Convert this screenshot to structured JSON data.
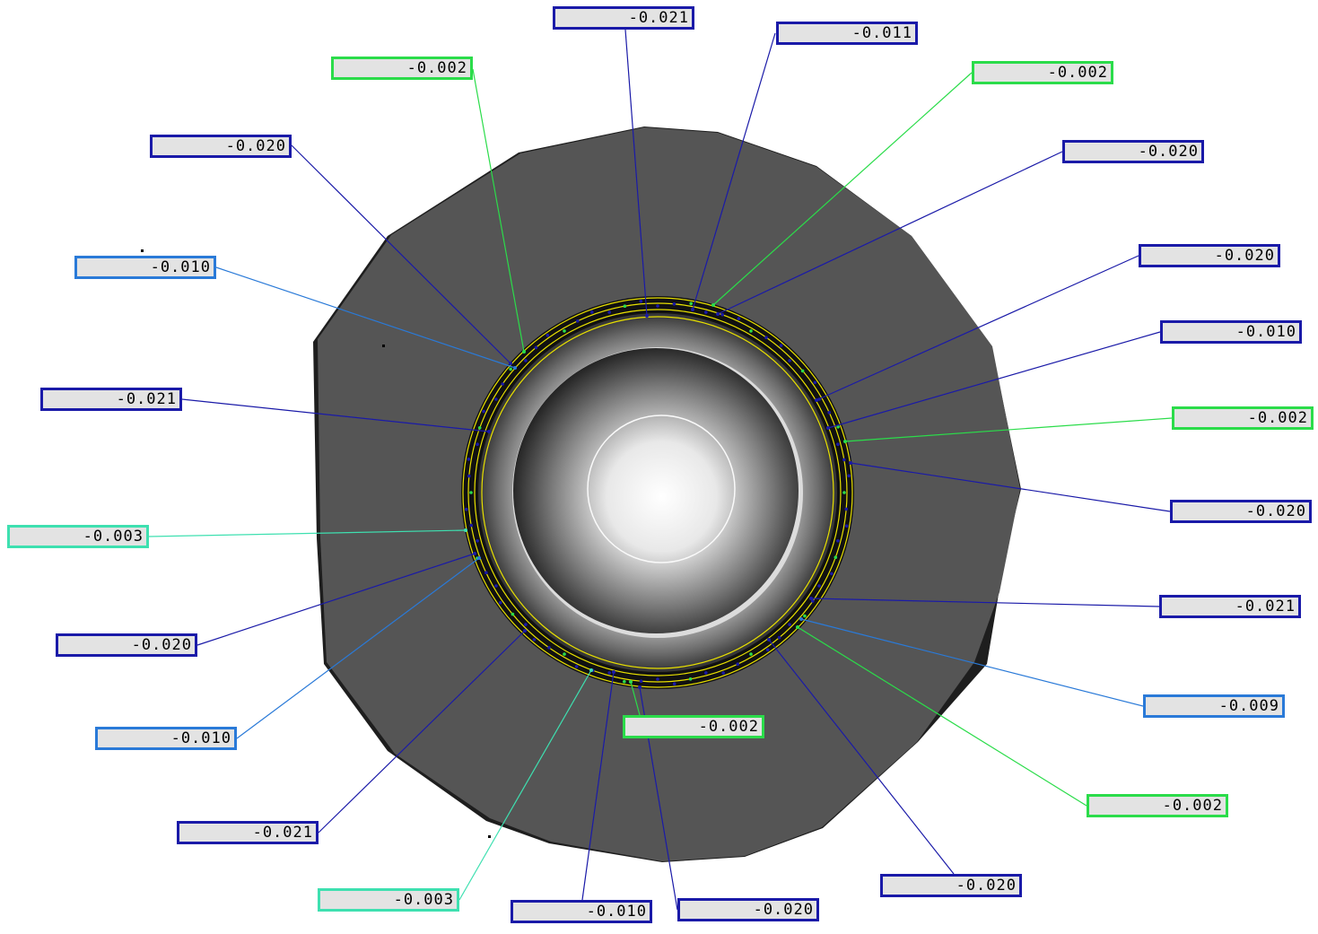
{
  "colors": {
    "background": "#ffffff",
    "part_face": "#555555",
    "label_fill": "#e3e3e3",
    "deviation_blue": "#1a1aa8",
    "deviation_light_blue": "#2a7ad8",
    "deviation_green": "#2bdc4a",
    "deviation_teal": "#3ee0b0",
    "nominal_circle": "#e8e000"
  },
  "annotations": [
    {
      "id": "a1",
      "value": "-0.021",
      "color": "#1a1aa8"
    },
    {
      "id": "a2",
      "value": "-0.011",
      "color": "#1a1aa8"
    },
    {
      "id": "a3",
      "value": "-0.002",
      "color": "#2bdc4a"
    },
    {
      "id": "a4",
      "value": "-0.002",
      "color": "#2bdc4a"
    },
    {
      "id": "a5",
      "value": "-0.020",
      "color": "#1a1aa8"
    },
    {
      "id": "a6",
      "value": "-0.020",
      "color": "#1a1aa8"
    },
    {
      "id": "a7",
      "value": "-0.010",
      "color": "#2a7ad8"
    },
    {
      "id": "a8",
      "value": "-0.020",
      "color": "#1a1aa8"
    },
    {
      "id": "a9",
      "value": "-0.010",
      "color": "#1a1aa8"
    },
    {
      "id": "a10",
      "value": "-0.021",
      "color": "#1a1aa8"
    },
    {
      "id": "a11",
      "value": "-0.002",
      "color": "#2bdc4a"
    },
    {
      "id": "a12",
      "value": "-0.003",
      "color": "#3ee0b0"
    },
    {
      "id": "a13",
      "value": "-0.020",
      "color": "#1a1aa8"
    },
    {
      "id": "a14",
      "value": "-0.021",
      "color": "#1a1aa8"
    },
    {
      "id": "a15",
      "value": "-0.020",
      "color": "#1a1aa8"
    },
    {
      "id": "a16",
      "value": "-0.009",
      "color": "#2a7ad8"
    },
    {
      "id": "a17",
      "value": "-0.010",
      "color": "#2a7ad8"
    },
    {
      "id": "a18",
      "value": "-0.002",
      "color": "#2bdc4a"
    },
    {
      "id": "a19",
      "value": "-0.002",
      "color": "#2bdc4a"
    },
    {
      "id": "a20",
      "value": "-0.021",
      "color": "#1a1aa8"
    },
    {
      "id": "a21",
      "value": "-0.003",
      "color": "#3ee0b0"
    },
    {
      "id": "a22",
      "value": "-0.020",
      "color": "#1a1aa8"
    },
    {
      "id": "a23",
      "value": "-0.010",
      "color": "#1a1aa8"
    },
    {
      "id": "a24",
      "value": "-0.020",
      "color": "#1a1aa8"
    }
  ]
}
